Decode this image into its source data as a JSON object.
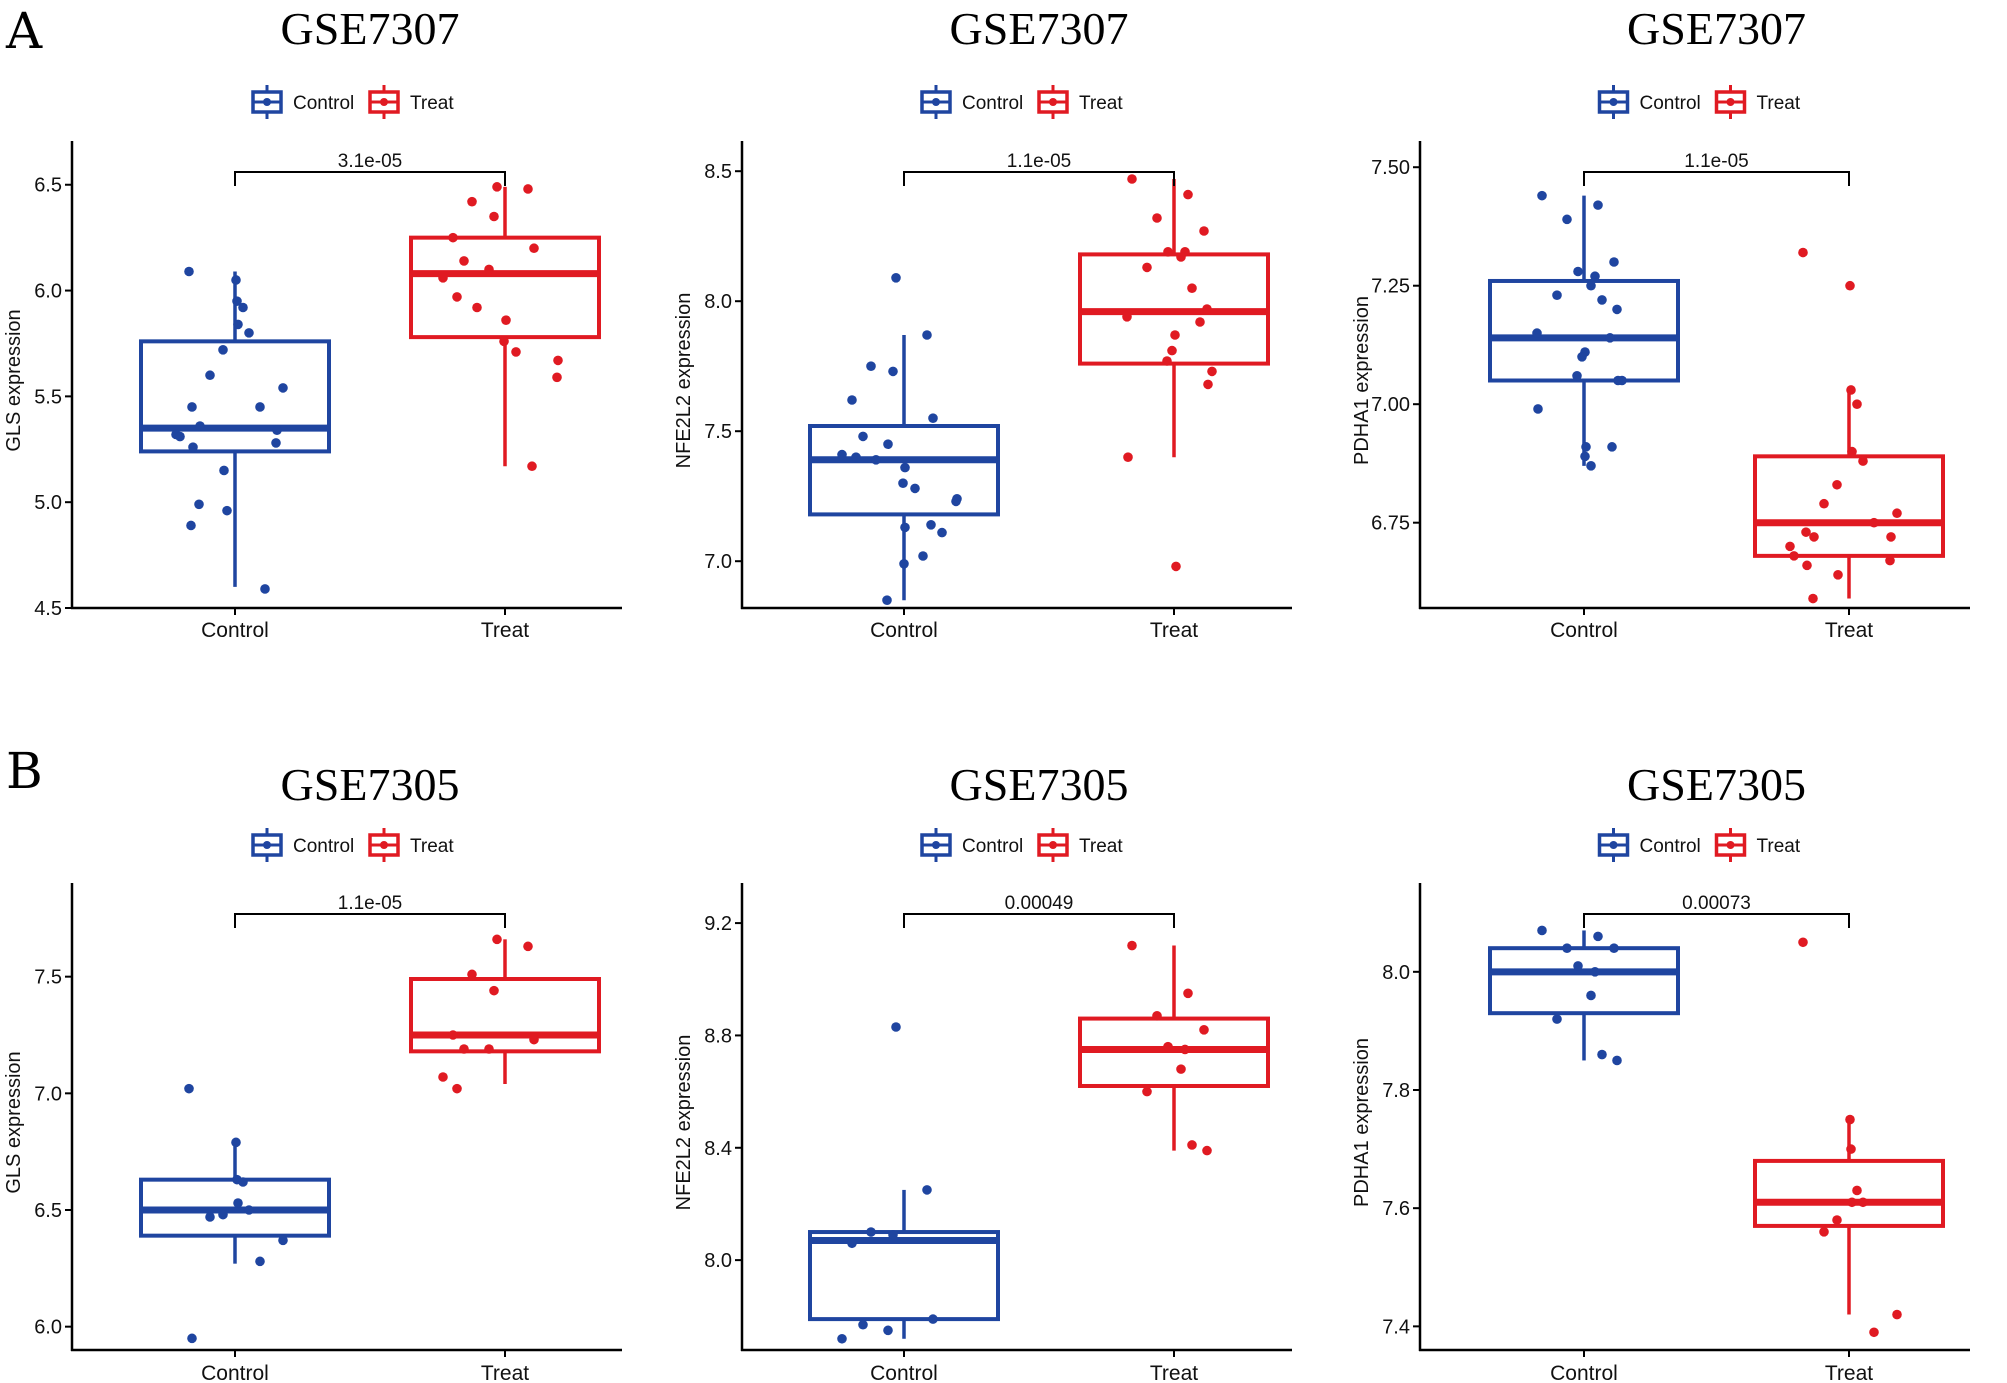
{
  "panels": [
    {
      "letter": "A"
    },
    {
      "letter": "B"
    }
  ],
  "colors": {
    "control": "#1f45a0",
    "treat": "#e01a22",
    "axis": "#000000"
  },
  "chart_data": [
    {
      "type": "box",
      "panel": "A",
      "title": "GSE7307",
      "ylabel": "GLS expression",
      "categories": [
        "Control",
        "Treat"
      ],
      "legend": [
        "Control",
        "Treat"
      ],
      "legend_position": "top",
      "ylim": [
        4.5,
        6.65
      ],
      "yticks": [
        4.5,
        5.0,
        5.5,
        6.0,
        6.5
      ],
      "ytick_labels": [
        "4.5",
        "5.0",
        "5.5",
        "6.0",
        "6.5"
      ],
      "pvalue": "3.1e-05",
      "boxes": [
        {
          "group": "Control",
          "q1": 5.24,
          "median": 5.35,
          "q3": 5.76,
          "whisker_low": 4.6,
          "whisker_high": 6.09
        },
        {
          "group": "Treat",
          "q1": 5.78,
          "median": 6.08,
          "q3": 6.25,
          "whisker_low": 5.17,
          "whisker_high": 6.49
        }
      ],
      "points": [
        [
          6.09,
          6.05,
          5.95,
          5.92,
          5.84,
          5.8,
          5.72,
          5.6,
          5.54,
          5.45,
          5.45,
          5.36,
          5.34,
          5.32,
          5.31,
          5.28,
          5.26,
          5.15,
          4.99,
          4.96,
          4.89,
          4.59
        ],
        [
          6.49,
          6.48,
          6.42,
          6.35,
          6.25,
          6.2,
          6.14,
          6.1,
          6.06,
          5.97,
          5.92,
          5.86,
          5.76,
          5.71,
          5.67,
          5.59,
          5.17
        ]
      ]
    },
    {
      "type": "box",
      "panel": "A",
      "title": "GSE7307",
      "ylabel": "NFE2L2 expression",
      "categories": [
        "Control",
        "Treat"
      ],
      "legend": [
        "Control",
        "Treat"
      ],
      "legend_position": "top",
      "ylim": [
        6.82,
        8.57
      ],
      "yticks": [
        7.0,
        7.5,
        8.0,
        8.5
      ],
      "ytick_labels": [
        "7.0",
        "7.5",
        "8.0",
        "8.5"
      ],
      "pvalue": "1.1e-05",
      "boxes": [
        {
          "group": "Control",
          "q1": 7.18,
          "median": 7.39,
          "q3": 7.52,
          "whisker_low": 6.85,
          "whisker_high": 7.87
        },
        {
          "group": "Treat",
          "q1": 7.76,
          "median": 7.96,
          "q3": 8.18,
          "whisker_low": 7.4,
          "whisker_high": 8.47
        }
      ],
      "points": [
        [
          8.09,
          7.87,
          7.75,
          7.73,
          7.62,
          7.55,
          7.48,
          7.45,
          7.41,
          7.4,
          7.39,
          7.36,
          7.3,
          7.28,
          7.24,
          7.23,
          7.14,
          7.13,
          7.11,
          7.02,
          6.99,
          6.85
        ],
        [
          8.47,
          8.41,
          8.32,
          8.27,
          8.19,
          8.19,
          8.17,
          8.13,
          8.05,
          7.97,
          7.94,
          7.92,
          7.87,
          7.81,
          7.77,
          7.73,
          7.68,
          7.4,
          6.98
        ]
      ]
    },
    {
      "type": "box",
      "panel": "A",
      "title": "GSE7307",
      "ylabel": "PDHA1 expression",
      "categories": [
        "Control",
        "Treat"
      ],
      "legend": [
        "Control",
        "Treat"
      ],
      "legend_position": "top",
      "ylim": [
        6.57,
        7.53
      ],
      "yticks": [
        6.75,
        7.0,
        7.25,
        7.5
      ],
      "ytick_labels": [
        "6.75",
        "7.00",
        "7.25",
        "7.50"
      ],
      "pvalue": "1.1e-05",
      "boxes": [
        {
          "group": "Control",
          "q1": 7.05,
          "median": 7.14,
          "q3": 7.26,
          "whisker_low": 6.87,
          "whisker_high": 7.44
        },
        {
          "group": "Treat",
          "q1": 6.68,
          "median": 6.75,
          "q3": 6.89,
          "whisker_low": 6.59,
          "whisker_high": 7.03
        }
      ],
      "points": [
        [
          7.44,
          7.42,
          7.39,
          7.3,
          7.28,
          7.27,
          7.25,
          7.23,
          7.22,
          7.2,
          7.15,
          7.14,
          7.11,
          7.1,
          7.06,
          7.05,
          7.05,
          6.99,
          6.91,
          6.91,
          6.89,
          6.87
        ],
        [
          7.32,
          7.25,
          7.03,
          7.0,
          6.9,
          6.88,
          6.83,
          6.79,
          6.77,
          6.75,
          6.73,
          6.72,
          6.72,
          6.7,
          6.68,
          6.67,
          6.66,
          6.64,
          6.59
        ]
      ]
    },
    {
      "type": "box",
      "panel": "B",
      "title": "GSE7305",
      "ylabel": "GLS expression",
      "categories": [
        "Control",
        "Treat"
      ],
      "legend": [
        "Control",
        "Treat"
      ],
      "legend_position": "top",
      "ylim": [
        5.9,
        7.85
      ],
      "yticks": [
        6.0,
        6.5,
        7.0,
        7.5
      ],
      "ytick_labels": [
        "6.0",
        "6.5",
        "7.0",
        "7.5"
      ],
      "pvalue": "1.1e-05",
      "boxes": [
        {
          "group": "Control",
          "q1": 6.39,
          "median": 6.5,
          "q3": 6.63,
          "whisker_low": 6.27,
          "whisker_high": 6.79
        },
        {
          "group": "Treat",
          "q1": 7.18,
          "median": 7.25,
          "q3": 7.49,
          "whisker_low": 7.04,
          "whisker_high": 7.66
        }
      ],
      "points": [
        [
          7.02,
          6.79,
          6.63,
          6.62,
          6.53,
          6.5,
          6.48,
          6.47,
          6.37,
          6.28,
          5.95
        ],
        [
          7.66,
          7.63,
          7.51,
          7.44,
          7.25,
          7.23,
          7.19,
          7.19,
          7.07,
          7.02
        ]
      ]
    },
    {
      "type": "box",
      "panel": "B",
      "title": "GSE7305",
      "ylabel": "NFE2L2 expression",
      "categories": [
        "Control",
        "Treat"
      ],
      "legend": [
        "Control",
        "Treat"
      ],
      "legend_position": "top",
      "ylim": [
        7.68,
        9.3
      ],
      "yticks": [
        8.0,
        8.4,
        8.8,
        9.2
      ],
      "ytick_labels": [
        "8.0",
        "8.4",
        "8.8",
        "9.2"
      ],
      "pvalue": "0.00049",
      "boxes": [
        {
          "group": "Control",
          "q1": 7.79,
          "median": 8.07,
          "q3": 8.1,
          "whisker_low": 7.72,
          "whisker_high": 8.25
        },
        {
          "group": "Treat",
          "q1": 8.62,
          "median": 8.75,
          "q3": 8.86,
          "whisker_low": 8.39,
          "whisker_high": 9.12
        }
      ],
      "points": [
        [
          8.83,
          8.25,
          8.1,
          8.09,
          8.06,
          7.79,
          7.77,
          7.75,
          7.72
        ],
        [
          9.12,
          8.95,
          8.87,
          8.82,
          8.76,
          8.75,
          8.68,
          8.6,
          8.41,
          8.39
        ]
      ]
    },
    {
      "type": "box",
      "panel": "B",
      "title": "GSE7305",
      "ylabel": "PDHA1 expression",
      "categories": [
        "Control",
        "Treat"
      ],
      "legend": [
        "Control",
        "Treat"
      ],
      "legend_position": "top",
      "ylim": [
        7.36,
        8.13
      ],
      "yticks": [
        7.4,
        7.6,
        7.8,
        8.0
      ],
      "ytick_labels": [
        "7.4",
        "7.6",
        "7.8",
        "8.0"
      ],
      "pvalue": "0.00073",
      "boxes": [
        {
          "group": "Control",
          "q1": 7.93,
          "median": 8.0,
          "q3": 8.04,
          "whisker_low": 7.85,
          "whisker_high": 8.07
        },
        {
          "group": "Treat",
          "q1": 7.57,
          "median": 7.61,
          "q3": 7.68,
          "whisker_low": 7.42,
          "whisker_high": 7.75
        }
      ],
      "points": [
        [
          8.07,
          8.06,
          8.04,
          8.04,
          8.01,
          8.0,
          7.96,
          7.92,
          7.86,
          7.85
        ],
        [
          8.05,
          7.75,
          7.7,
          7.63,
          7.61,
          7.61,
          7.58,
          7.56,
          7.42,
          7.39
        ]
      ]
    }
  ]
}
